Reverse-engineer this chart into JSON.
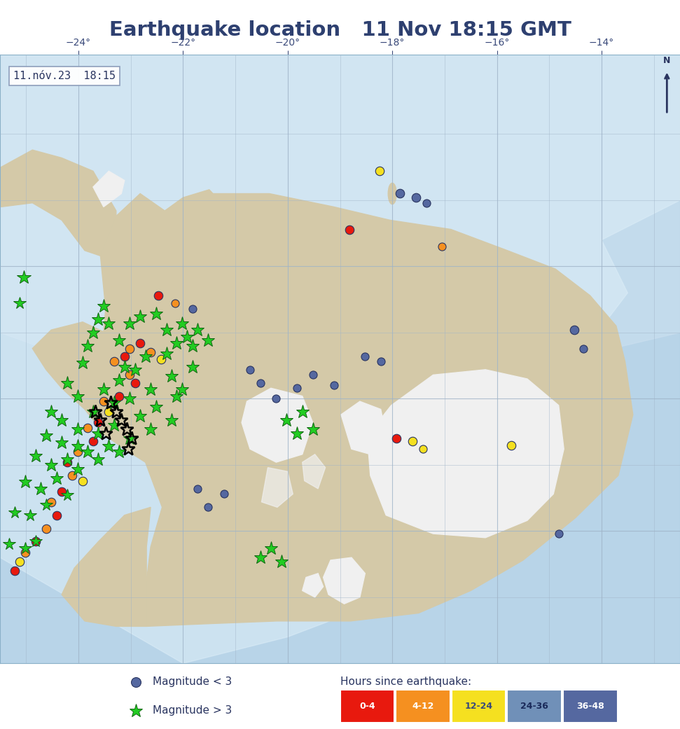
{
  "title": "Earthquake location   11 Nov 18:15 GMT",
  "title_color": "#2e4070",
  "title_fontsize": 21,
  "title_fontweight": "bold",
  "bg_color": "#ffffff",
  "ocean_color": "#b8d4e8",
  "ocean_shallow": "#cce0f0",
  "ocean_very_shallow": "#ddeef8",
  "land_color": "#d4c9a8",
  "glacier_color": "#f0f0f0",
  "timestamp_label": "11.nóv.23  18:15",
  "lon_min": -25.5,
  "lon_max": -12.5,
  "lat_min": 63.0,
  "lat_max": 67.6,
  "lon_ticks": [
    -24,
    -22,
    -20,
    -18,
    -16,
    -14
  ],
  "lat_ticks": [
    64,
    65,
    66
  ],
  "grid_color": "#a0b4c8",
  "colors": {
    "0_4": "#e8190e",
    "4_12": "#f59020",
    "12_24": "#f5e020",
    "24_36": "#7090b8",
    "36_48": "#5568a0",
    "small_mag": "#4a5a8a"
  },
  "small_dots": [
    {
      "lon": -18.25,
      "lat": 66.72,
      "color": "12_24",
      "size": 9
    },
    {
      "lon": -17.85,
      "lat": 66.55,
      "color": "36_48",
      "size": 9
    },
    {
      "lon": -17.55,
      "lat": 66.52,
      "color": "36_48",
      "size": 9
    },
    {
      "lon": -17.35,
      "lat": 66.48,
      "color": "36_48",
      "size": 8
    },
    {
      "lon": -18.82,
      "lat": 66.28,
      "color": "0_4",
      "size": 9
    },
    {
      "lon": -17.05,
      "lat": 66.15,
      "color": "4_12",
      "size": 8
    },
    {
      "lon": -22.48,
      "lat": 65.78,
      "color": "0_4",
      "size": 9
    },
    {
      "lon": -22.15,
      "lat": 65.72,
      "color": "4_12",
      "size": 8
    },
    {
      "lon": -21.82,
      "lat": 65.68,
      "color": "36_48",
      "size": 8
    },
    {
      "lon": -14.52,
      "lat": 65.52,
      "color": "36_48",
      "size": 9
    },
    {
      "lon": -14.35,
      "lat": 65.38,
      "color": "36_48",
      "size": 8
    },
    {
      "lon": -20.52,
      "lat": 65.12,
      "color": "36_48",
      "size": 8
    },
    {
      "lon": -19.82,
      "lat": 65.08,
      "color": "36_48",
      "size": 8
    },
    {
      "lon": -20.22,
      "lat": 65.0,
      "color": "36_48",
      "size": 8
    },
    {
      "lon": -20.72,
      "lat": 65.22,
      "color": "36_48",
      "size": 8
    },
    {
      "lon": -19.52,
      "lat": 65.18,
      "color": "36_48",
      "size": 8
    },
    {
      "lon": -19.12,
      "lat": 65.1,
      "color": "36_48",
      "size": 8
    },
    {
      "lon": -18.52,
      "lat": 65.32,
      "color": "36_48",
      "size": 8
    },
    {
      "lon": -18.22,
      "lat": 65.28,
      "color": "36_48",
      "size": 8
    },
    {
      "lon": -17.62,
      "lat": 64.68,
      "color": "12_24",
      "size": 9
    },
    {
      "lon": -17.42,
      "lat": 64.62,
      "color": "12_24",
      "size": 8
    },
    {
      "lon": -17.92,
      "lat": 64.7,
      "color": "0_4",
      "size": 9
    },
    {
      "lon": -15.72,
      "lat": 64.65,
      "color": "12_24",
      "size": 9
    },
    {
      "lon": -14.82,
      "lat": 63.98,
      "color": "36_48",
      "size": 8
    },
    {
      "lon": -21.52,
      "lat": 64.18,
      "color": "36_48",
      "size": 8
    },
    {
      "lon": -21.22,
      "lat": 64.28,
      "color": "36_48",
      "size": 8
    },
    {
      "lon": -21.72,
      "lat": 64.32,
      "color": "36_48",
      "size": 8
    },
    {
      "lon": -22.82,
      "lat": 65.42,
      "color": "0_4",
      "size": 9
    },
    {
      "lon": -23.02,
      "lat": 65.38,
      "color": "4_12",
      "size": 9
    },
    {
      "lon": -23.12,
      "lat": 65.32,
      "color": "0_4",
      "size": 9
    },
    {
      "lon": -22.62,
      "lat": 65.35,
      "color": "4_12",
      "size": 9
    },
    {
      "lon": -22.42,
      "lat": 65.3,
      "color": "12_24",
      "size": 9
    },
    {
      "lon": -23.32,
      "lat": 65.28,
      "color": "4_12",
      "size": 9
    },
    {
      "lon": -23.02,
      "lat": 65.18,
      "color": "4_12",
      "size": 9
    },
    {
      "lon": -22.92,
      "lat": 65.12,
      "color": "0_4",
      "size": 9
    },
    {
      "lon": -23.22,
      "lat": 65.02,
      "color": "0_4",
      "size": 9
    },
    {
      "lon": -23.52,
      "lat": 64.98,
      "color": "4_12",
      "size": 9
    },
    {
      "lon": -23.42,
      "lat": 64.9,
      "color": "12_24",
      "size": 9
    },
    {
      "lon": -23.62,
      "lat": 64.82,
      "color": "0_4",
      "size": 9
    },
    {
      "lon": -23.82,
      "lat": 64.78,
      "color": "4_12",
      "size": 9
    },
    {
      "lon": -23.72,
      "lat": 64.68,
      "color": "0_4",
      "size": 9
    },
    {
      "lon": -24.02,
      "lat": 64.6,
      "color": "4_12",
      "size": 9
    },
    {
      "lon": -24.22,
      "lat": 64.52,
      "color": "0_4",
      "size": 9
    },
    {
      "lon": -24.12,
      "lat": 64.42,
      "color": "4_12",
      "size": 9
    },
    {
      "lon": -23.92,
      "lat": 64.38,
      "color": "12_24",
      "size": 9
    },
    {
      "lon": -24.32,
      "lat": 64.3,
      "color": "0_4",
      "size": 9
    },
    {
      "lon": -24.52,
      "lat": 64.22,
      "color": "4_12",
      "size": 9
    },
    {
      "lon": -24.42,
      "lat": 64.12,
      "color": "0_4",
      "size": 9
    },
    {
      "lon": -24.62,
      "lat": 64.02,
      "color": "4_12",
      "size": 9
    },
    {
      "lon": -24.82,
      "lat": 63.92,
      "color": "0_4",
      "size": 9
    },
    {
      "lon": -25.02,
      "lat": 63.84,
      "color": "4_12",
      "size": 9
    },
    {
      "lon": -25.12,
      "lat": 63.77,
      "color": "12_24",
      "size": 9
    },
    {
      "lon": -25.22,
      "lat": 63.7,
      "color": "0_4",
      "size": 9
    }
  ],
  "large_stars_green": [
    {
      "lon": -25.05,
      "lat": 65.92,
      "size": 15
    },
    {
      "lon": -25.12,
      "lat": 65.72,
      "size": 13
    },
    {
      "lon": -23.52,
      "lat": 65.7,
      "size": 14
    },
    {
      "lon": -23.62,
      "lat": 65.6,
      "size": 14
    },
    {
      "lon": -23.72,
      "lat": 65.5,
      "size": 14
    },
    {
      "lon": -23.42,
      "lat": 65.57,
      "size": 14
    },
    {
      "lon": -23.22,
      "lat": 65.44,
      "size": 14
    },
    {
      "lon": -23.02,
      "lat": 65.57,
      "size": 14
    },
    {
      "lon": -22.82,
      "lat": 65.62,
      "size": 14
    },
    {
      "lon": -22.52,
      "lat": 65.64,
      "size": 14
    },
    {
      "lon": -23.82,
      "lat": 65.4,
      "size": 14
    },
    {
      "lon": -22.32,
      "lat": 65.52,
      "size": 14
    },
    {
      "lon": -22.02,
      "lat": 65.57,
      "size": 14
    },
    {
      "lon": -23.92,
      "lat": 65.27,
      "size": 14
    },
    {
      "lon": -23.12,
      "lat": 65.24,
      "size": 14
    },
    {
      "lon": -22.72,
      "lat": 65.32,
      "size": 14
    },
    {
      "lon": -22.12,
      "lat": 65.42,
      "size": 14
    },
    {
      "lon": -21.92,
      "lat": 65.47,
      "size": 14
    },
    {
      "lon": -21.72,
      "lat": 65.52,
      "size": 14
    },
    {
      "lon": -24.22,
      "lat": 65.12,
      "size": 14
    },
    {
      "lon": -24.02,
      "lat": 65.02,
      "size": 14
    },
    {
      "lon": -23.52,
      "lat": 65.07,
      "size": 14
    },
    {
      "lon": -23.22,
      "lat": 65.14,
      "size": 14
    },
    {
      "lon": -22.92,
      "lat": 65.22,
      "size": 14
    },
    {
      "lon": -22.32,
      "lat": 65.34,
      "size": 14
    },
    {
      "lon": -21.82,
      "lat": 65.4,
      "size": 14
    },
    {
      "lon": -21.52,
      "lat": 65.44,
      "size": 14
    },
    {
      "lon": -24.52,
      "lat": 64.9,
      "size": 14
    },
    {
      "lon": -24.32,
      "lat": 64.84,
      "size": 14
    },
    {
      "lon": -24.02,
      "lat": 64.77,
      "size": 14
    },
    {
      "lon": -23.72,
      "lat": 64.9,
      "size": 14
    },
    {
      "lon": -23.32,
      "lat": 64.97,
      "size": 14
    },
    {
      "lon": -23.02,
      "lat": 65.0,
      "size": 14
    },
    {
      "lon": -22.62,
      "lat": 65.07,
      "size": 14
    },
    {
      "lon": -22.22,
      "lat": 65.17,
      "size": 14
    },
    {
      "lon": -21.82,
      "lat": 65.24,
      "size": 14
    },
    {
      "lon": -24.62,
      "lat": 64.72,
      "size": 14
    },
    {
      "lon": -24.32,
      "lat": 64.67,
      "size": 14
    },
    {
      "lon": -24.02,
      "lat": 64.64,
      "size": 14
    },
    {
      "lon": -23.62,
      "lat": 64.74,
      "size": 14
    },
    {
      "lon": -23.32,
      "lat": 64.8,
      "size": 14
    },
    {
      "lon": -22.82,
      "lat": 64.87,
      "size": 14
    },
    {
      "lon": -22.52,
      "lat": 64.94,
      "size": 14
    },
    {
      "lon": -22.12,
      "lat": 65.02,
      "size": 14
    },
    {
      "lon": -24.82,
      "lat": 64.57,
      "size": 14
    },
    {
      "lon": -24.52,
      "lat": 64.5,
      "size": 14
    },
    {
      "lon": -24.22,
      "lat": 64.54,
      "size": 14
    },
    {
      "lon": -23.82,
      "lat": 64.6,
      "size": 14
    },
    {
      "lon": -23.42,
      "lat": 64.64,
      "size": 14
    },
    {
      "lon": -23.02,
      "lat": 64.7,
      "size": 14
    },
    {
      "lon": -22.62,
      "lat": 64.77,
      "size": 14
    },
    {
      "lon": -22.22,
      "lat": 64.84,
      "size": 14
    },
    {
      "lon": -25.02,
      "lat": 64.37,
      "size": 14
    },
    {
      "lon": -24.72,
      "lat": 64.32,
      "size": 14
    },
    {
      "lon": -24.42,
      "lat": 64.4,
      "size": 14
    },
    {
      "lon": -24.02,
      "lat": 64.47,
      "size": 14
    },
    {
      "lon": -23.62,
      "lat": 64.54,
      "size": 14
    },
    {
      "lon": -23.22,
      "lat": 64.6,
      "size": 14
    },
    {
      "lon": -25.22,
      "lat": 64.14,
      "size": 13
    },
    {
      "lon": -24.92,
      "lat": 64.12,
      "size": 13
    },
    {
      "lon": -24.62,
      "lat": 64.2,
      "size": 13
    },
    {
      "lon": -24.22,
      "lat": 64.27,
      "size": 13
    },
    {
      "lon": -25.32,
      "lat": 63.9,
      "size": 13
    },
    {
      "lon": -25.02,
      "lat": 63.87,
      "size": 13
    },
    {
      "lon": -24.82,
      "lat": 63.92,
      "size": 13
    },
    {
      "lon": -19.72,
      "lat": 64.9,
      "size": 14
    },
    {
      "lon": -19.52,
      "lat": 64.77,
      "size": 14
    },
    {
      "lon": -19.82,
      "lat": 64.74,
      "size": 14
    },
    {
      "lon": -20.02,
      "lat": 64.84,
      "size": 14
    },
    {
      "lon": -20.32,
      "lat": 63.87,
      "size": 14
    },
    {
      "lon": -20.12,
      "lat": 63.77,
      "size": 14
    },
    {
      "lon": -20.52,
      "lat": 63.8,
      "size": 14
    },
    {
      "lon": -22.02,
      "lat": 65.07,
      "size": 14
    }
  ],
  "black_outlined_stars": [
    {
      "lon": -23.38,
      "lat": 64.97
    },
    {
      "lon": -23.28,
      "lat": 64.9
    },
    {
      "lon": -23.18,
      "lat": 64.84
    },
    {
      "lon": -23.08,
      "lat": 64.77
    },
    {
      "lon": -23.48,
      "lat": 64.74
    },
    {
      "lon": -23.58,
      "lat": 64.84
    },
    {
      "lon": -23.68,
      "lat": 64.9
    },
    {
      "lon": -22.98,
      "lat": 64.7
    },
    {
      "lon": -23.05,
      "lat": 64.62
    }
  ],
  "legend_colors": {
    "0_4": "#e8190e",
    "4_12": "#f59020",
    "12_24": "#f5e020",
    "24_36": "#7090b8",
    "36_48": "#5568a0"
  },
  "legend_labels": [
    "0-4",
    "4-12",
    "12-24",
    "24-36",
    "36-48"
  ]
}
